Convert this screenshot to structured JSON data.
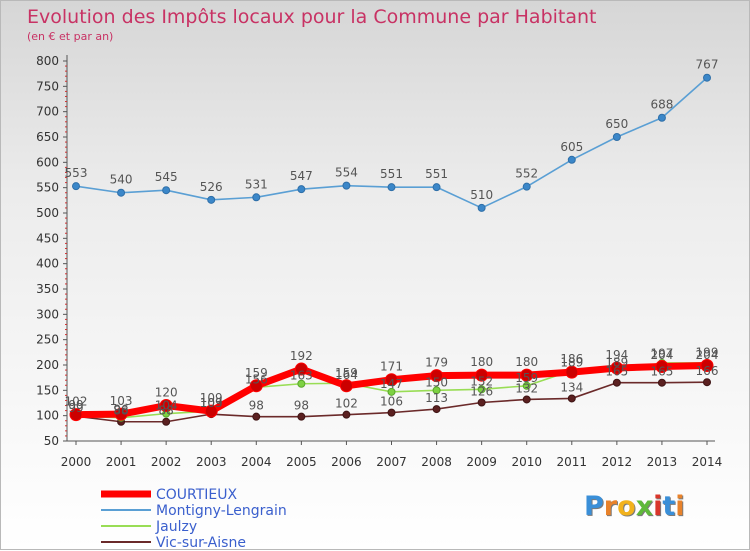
{
  "header": {
    "title": "Evolution des Impôts locaux pour la Commune par Habitant",
    "subtitle": "(en € et par an)"
  },
  "logo": {
    "text": "Proxiti"
  },
  "chart_data": {
    "type": "line",
    "title": "Evolution des Impôts locaux pour la Commune par Habitant",
    "subtitle": "(en € et par an)",
    "xlabel": "",
    "ylabel": "",
    "x": [
      "2000",
      "2001",
      "2002",
      "2003",
      "2004",
      "2005",
      "2006",
      "2007",
      "2008",
      "2009",
      "2010",
      "2011",
      "2012",
      "2013",
      "2014"
    ],
    "ylim": [
      50,
      800
    ],
    "yticks": [
      50,
      100,
      150,
      200,
      250,
      300,
      350,
      400,
      450,
      500,
      550,
      600,
      650,
      700,
      750,
      800
    ],
    "grid": false,
    "legend_position": "bottom-left",
    "series": [
      {
        "name": "COURTIEUX",
        "color": "#ff0000",
        "values": [
          102,
          103,
          120,
          109,
          159,
          192,
          159,
          171,
          179,
          180,
          180,
          186,
          194,
          197,
          199
        ]
      },
      {
        "name": "Montigny-Lengrain",
        "color": "#5a9fd4",
        "values": [
          553,
          540,
          545,
          526,
          531,
          547,
          554,
          551,
          551,
          510,
          552,
          605,
          650,
          688,
          767
        ]
      },
      {
        "name": "Jaulzy",
        "color": "#99dd55",
        "values": [
          99,
          96,
          104,
          109,
          156,
          163,
          164,
          147,
          150,
          152,
          159,
          189,
          189,
          204,
          204
        ]
      },
      {
        "name": "Vic-sur-Aisne",
        "color": "#6b2a2a",
        "values": [
          99,
          88,
          88,
          103,
          98,
          98,
          102,
          106,
          113,
          126,
          132,
          134,
          165,
          165,
          166
        ]
      }
    ]
  }
}
